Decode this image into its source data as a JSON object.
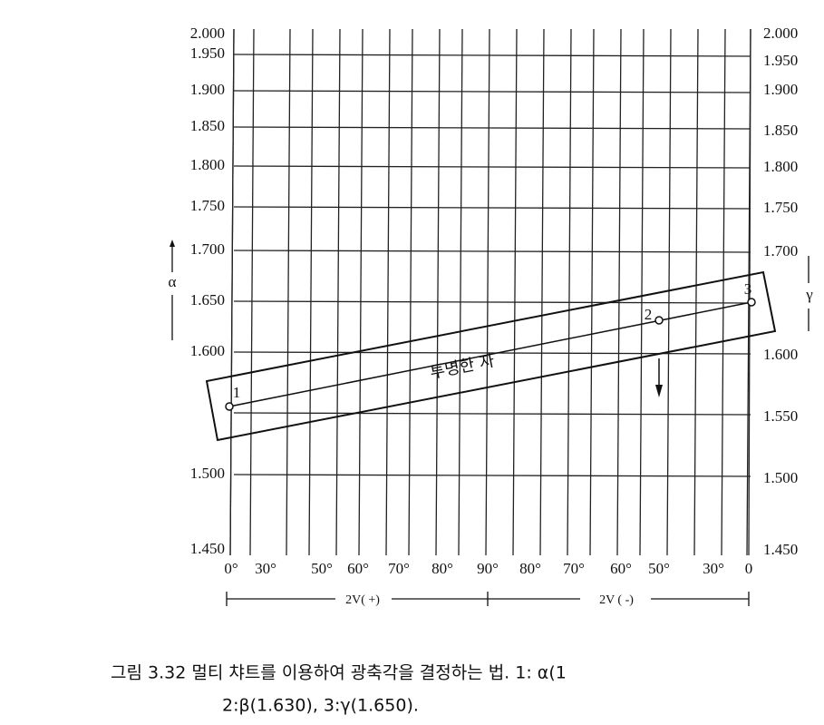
{
  "left_axis": {
    "name": "α",
    "labels": [
      "2.000",
      "1.950",
      "1.900",
      "1.850",
      "1.800",
      "1.750",
      "1.700",
      "1.650",
      "1.600",
      "1.500",
      "1.450"
    ]
  },
  "right_axis": {
    "name": "γ",
    "labels": [
      "2.000",
      "1.950",
      "1.900",
      "1.850",
      "1.800",
      "1.750",
      "1.700",
      "1.600",
      "1.550",
      "1.500",
      "1.450"
    ]
  },
  "bottom_labels": [
    "0°",
    "30°",
    "50°",
    "60°",
    "70°",
    "80°",
    "90°",
    "80°",
    "70°",
    "60°",
    "50°",
    "30°",
    "0"
  ],
  "ruler": {
    "label": "투명한 자",
    "points": [
      "1",
      "2",
      "3"
    ]
  },
  "ranges": [
    "2V( +)",
    "2V ( -)"
  ],
  "caption": [
    "그림 3.32 멀티 챠트를 이용하여 광축각을 결정하는 법. 1: α(1",
    "2:β(1.630), 3:γ(1.650)."
  ]
}
